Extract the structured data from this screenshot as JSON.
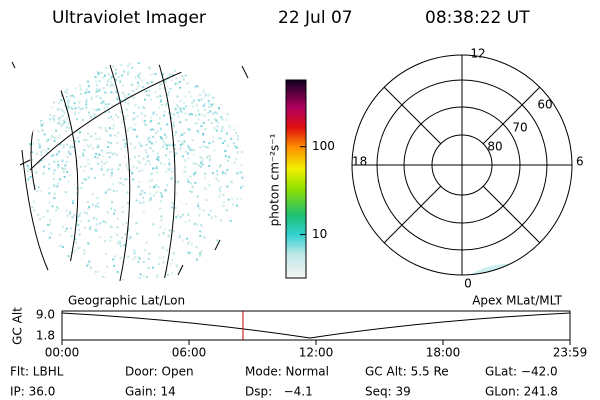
{
  "header": {
    "title": "Ultraviolet Imager",
    "date": "22 Jul 07",
    "time": "08:38:22 UT"
  },
  "colorbar": {
    "label": "photon cm⁻²s⁻¹",
    "ticks": [
      10,
      100
    ],
    "lim": [
      3.2,
      575
    ],
    "log": true
  },
  "polar": {
    "clock_labels": [
      "12",
      "18",
      "6",
      "0"
    ],
    "ring_labels": [
      "80",
      "70",
      "60"
    ]
  },
  "timeline": {
    "left_label": "Geographic Lat/Lon",
    "right_label": "Apex MLat/MLT",
    "y_label": "GC Alt",
    "yticks": [
      "9.0",
      "1.8"
    ],
    "xticks": [
      "00:00",
      "06:00",
      "12:00",
      "18:00",
      "23:59"
    ]
  },
  "info": [
    [
      "Flt: LBHL",
      "Door: Open",
      "Mode: Normal",
      "GC Alt: 5.5 Re",
      "GLat: −42.0"
    ],
    [
      "IP: 36.0",
      "Gain: 14",
      "Dsp:   −4.1",
      "Seq: 39",
      "GLon: 241.8"
    ]
  ]
}
